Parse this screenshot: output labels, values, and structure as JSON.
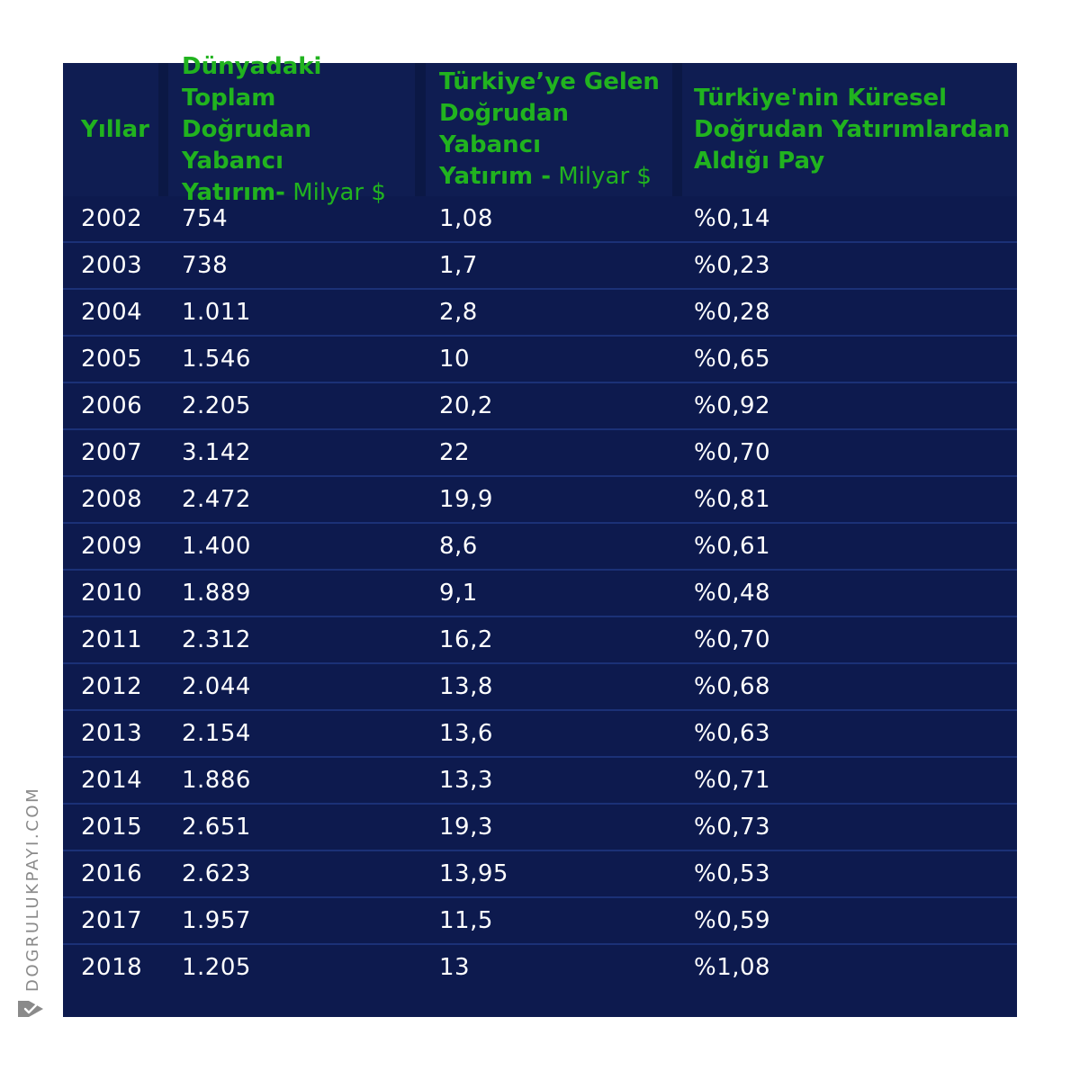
{
  "header": {
    "col_year": "Yıllar",
    "col_world_line1": "Dünyadaki Toplam",
    "col_world_line2": "Doğrudan Yabancı",
    "col_world_line3_bold": "Yatırım-",
    "col_world_line3_light": " Milyar $",
    "col_turkey_line1": "Türkiye’ye Gelen",
    "col_turkey_line2": "Doğrudan Yabancı",
    "col_turkey_line3_bold": "Yatırım -",
    "col_turkey_line3_light": " Milyar $",
    "col_share_line1": "Türkiye'nin  Küresel",
    "col_share_line2": "Doğrudan Yatırımlardan",
    "col_share_line3": "Aldığı Pay"
  },
  "rows": [
    {
      "year": "2002",
      "world": "754",
      "turkey": "1,08",
      "share": "%0,14"
    },
    {
      "year": "2003",
      "world": "738",
      "turkey": "1,7",
      "share": "%0,23"
    },
    {
      "year": "2004",
      "world": "1.011",
      "turkey": "2,8",
      "share": "%0,28"
    },
    {
      "year": "2005",
      "world": "1.546",
      "turkey": "10",
      "share": "%0,65"
    },
    {
      "year": "2006",
      "world": "2.205",
      "turkey": "20,2",
      "share": "%0,92"
    },
    {
      "year": "2007",
      "world": "3.142",
      "turkey": "22",
      "share": "%0,70"
    },
    {
      "year": "2008",
      "world": "2.472",
      "turkey": "19,9",
      "share": "%0,81"
    },
    {
      "year": "2009",
      "world": "1.400",
      "turkey": "8,6",
      "share": "%0,61"
    },
    {
      "year": "2010",
      "world": "1.889",
      "turkey": "9,1",
      "share": "%0,48"
    },
    {
      "year": "2011",
      "world": "2.312",
      "turkey": "16,2",
      "share": "%0,70"
    },
    {
      "year": "2012",
      "world": "2.044",
      "turkey": "13,8",
      "share": "%0,68"
    },
    {
      "year": "2013",
      "world": "2.154",
      "turkey": "13,6",
      "share": "%0,63"
    },
    {
      "year": "2014",
      "world": "1.886",
      "turkey": "13,3",
      "share": "%0,71"
    },
    {
      "year": "2015",
      "world": "2.651",
      "turkey": "19,3",
      "share": "%0,73"
    },
    {
      "year": "2016",
      "world": "2.623",
      "turkey": "13,95",
      "share": "%0,53"
    },
    {
      "year": "2017",
      "world": "1.957",
      "turkey": "11,5",
      "share": "%0,59"
    },
    {
      "year": "2018",
      "world": "1.205",
      "turkey": "13",
      "share": "%1,08"
    }
  ],
  "watermark": {
    "text": "DOGRULUKPAYI.COM",
    "logo_icon": "dogrulukpayi-logo-icon"
  },
  "colors": {
    "panel_background": "#0d1a4e",
    "header_text": "#21b31f",
    "row_text": "#ffffff",
    "row_divider": "#1b3177",
    "watermark": "#8a8a8a"
  }
}
